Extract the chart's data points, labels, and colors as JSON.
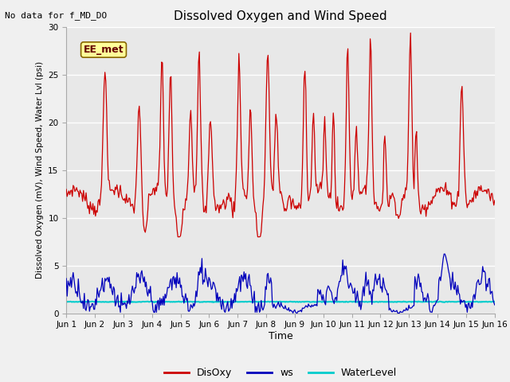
{
  "title": "Dissolved Oxygen and Wind Speed",
  "top_left_text": "No data for f_MD_DO",
  "annotation_box": "EE_met",
  "ylabel": "Dissolved Oxygen (mV), Wind Speed, Water Lvl (psi)",
  "xlabel": "Time",
  "ylim": [
    0,
    30
  ],
  "yticks": [
    0,
    5,
    10,
    15,
    20,
    25,
    30
  ],
  "bg_color": "#e8e8e8",
  "fig_color": "#f0f0f0",
  "legend_labels": [
    "DisOxy",
    "ws",
    "WaterLevel"
  ],
  "legend_colors": [
    "#cc0000",
    "#0000bb",
    "#00cccc"
  ],
  "disoxy_color": "#cc0000",
  "ws_color": "#0000bb",
  "water_color": "#00cccc",
  "n_points": 500,
  "xtick_labels": [
    "Jun 1",
    "Jun 2",
    "Jun 3",
    "Jun 4",
    "Jun 5",
    "Jun 6",
    "Jun 7",
    "Jun 8",
    "Jun 9",
    "Jun 10",
    "Jun 11",
    "Jun 12",
    "Jun 13",
    "Jun 14",
    "Jun 15",
    "Jun 16"
  ],
  "water_level_value": 1.2,
  "grid_color": "#cccccc",
  "spine_color": "#aaaaaa"
}
